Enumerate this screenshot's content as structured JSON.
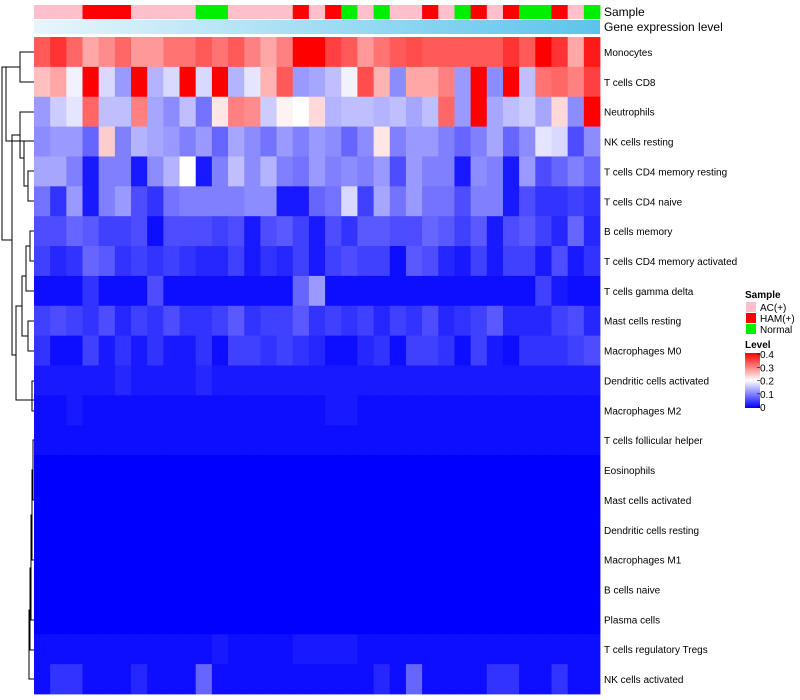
{
  "chart_data": {
    "type": "heatmap",
    "annotation_labels": [
      "Sample",
      "Gene expression level"
    ],
    "rows": [
      "Monocytes",
      "T cells CD8",
      "Neutrophils",
      "NK cells resting",
      "T cells CD4 memory resting",
      "T cells CD4 naive",
      "B cells memory",
      "T cells CD4 memory activated",
      "T cells gamma delta",
      "Mast cells resting",
      "Macrophages M0",
      "Dendritic cells activated",
      "Macrophages M2",
      "T cells follicular helper",
      "Eosinophils",
      "Mast cells activated",
      "Dendritic cells resting",
      "Macrophages M1",
      "B cells naive",
      "Plasma cells",
      "T cells regulatory  Tregs",
      "NK cells activated"
    ],
    "sample_groups": [
      "AC",
      "AC",
      "AC",
      "HAM",
      "HAM",
      "HAM",
      "AC",
      "AC",
      "AC",
      "AC",
      "Normal",
      "Normal",
      "AC",
      "AC",
      "AC",
      "AC",
      "HAM",
      "AC",
      "HAM",
      "Normal",
      "AC",
      "Normal",
      "AC",
      "AC",
      "HAM",
      "AC",
      "Normal",
      "HAM",
      "AC",
      "HAM",
      "Normal",
      "Normal",
      "HAM",
      "AC",
      "Normal"
    ],
    "expression_gradient": [
      "#e8f6fc",
      "#5bc4ec"
    ],
    "values": [
      [
        0.33,
        0.36,
        0.32,
        0.27,
        0.29,
        0.32,
        0.28,
        0.28,
        0.31,
        0.31,
        0.33,
        0.31,
        0.33,
        0.3,
        0.27,
        0.3,
        0.4,
        0.4,
        0.35,
        0.33,
        0.28,
        0.31,
        0.33,
        0.34,
        0.33,
        0.33,
        0.33,
        0.33,
        0.33,
        0.36,
        0.33,
        0.4,
        0.36,
        0.27,
        0.38
      ],
      [
        0.25,
        0.27,
        0.19,
        0.4,
        0.17,
        0.12,
        0.4,
        0.14,
        0.17,
        0.4,
        0.17,
        0.4,
        0.14,
        0.18,
        0.26,
        0.33,
        0.12,
        0.13,
        0.15,
        0.19,
        0.34,
        0.26,
        0.11,
        0.27,
        0.27,
        0.3,
        0.12,
        0.4,
        0.11,
        0.4,
        0.15,
        0.31,
        0.32,
        0.3,
        0.35
      ],
      [
        0.12,
        0.16,
        0.18,
        0.32,
        0.15,
        0.15,
        0.3,
        0.13,
        0.11,
        0.15,
        0.09,
        0.22,
        0.3,
        0.29,
        0.16,
        0.21,
        0.2,
        0.23,
        0.14,
        0.15,
        0.15,
        0.14,
        0.15,
        0.13,
        0.15,
        0.32,
        0.12,
        0.4,
        0.13,
        0.15,
        0.16,
        0.13,
        0.23,
        0.11,
        0.4
      ],
      [
        0.11,
        0.12,
        0.12,
        0.08,
        0.24,
        0.1,
        0.14,
        0.13,
        0.12,
        0.1,
        0.12,
        0.08,
        0.13,
        0.11,
        0.09,
        0.12,
        0.1,
        0.12,
        0.11,
        0.08,
        0.11,
        0.22,
        0.1,
        0.12,
        0.12,
        0.1,
        0.08,
        0.1,
        0.13,
        0.08,
        0.11,
        0.18,
        0.17,
        0.06,
        0.11
      ],
      [
        0.13,
        0.13,
        0.1,
        0.02,
        0.1,
        0.1,
        0.02,
        0.11,
        0.14,
        0.2,
        0.02,
        0.1,
        0.15,
        0.11,
        0.14,
        0.1,
        0.09,
        0.12,
        0.1,
        0.11,
        0.1,
        0.12,
        0.06,
        0.12,
        0.1,
        0.1,
        0.02,
        0.11,
        0.1,
        0.02,
        0.12,
        0.06,
        0.08,
        0.1,
        0.08
      ],
      [
        0.09,
        0.04,
        0.12,
        0.02,
        0.1,
        0.12,
        0.06,
        0.04,
        0.09,
        0.1,
        0.1,
        0.1,
        0.1,
        0.11,
        0.11,
        0.02,
        0.02,
        0.08,
        0.09,
        0.17,
        0.05,
        0.13,
        0.09,
        0.12,
        0.09,
        0.09,
        0.06,
        0.1,
        0.1,
        0.02,
        0.06,
        0.04,
        0.04,
        0.05,
        0.04
      ],
      [
        0.06,
        0.06,
        0.08,
        0.07,
        0.05,
        0.05,
        0.06,
        0.01,
        0.06,
        0.06,
        0.06,
        0.05,
        0.06,
        0.02,
        0.06,
        0.07,
        0.05,
        0.02,
        0.06,
        0.04,
        0.07,
        0.07,
        0.06,
        0.06,
        0.08,
        0.07,
        0.05,
        0.07,
        0.02,
        0.06,
        0.07,
        0.05,
        0.03,
        0.08,
        0.03
      ],
      [
        0.05,
        0.03,
        0.04,
        0.08,
        0.07,
        0.04,
        0.05,
        0.04,
        0.05,
        0.04,
        0.03,
        0.03,
        0.05,
        0.02,
        0.04,
        0.03,
        0.05,
        0.02,
        0.05,
        0.06,
        0.05,
        0.05,
        0.01,
        0.07,
        0.06,
        0.03,
        0.02,
        0.05,
        0.02,
        0.05,
        0.05,
        0.02,
        0.06,
        0.02,
        0.04
      ],
      [
        0.01,
        0.01,
        0.01,
        0.04,
        0.01,
        0.01,
        0.01,
        0.06,
        0.01,
        0.01,
        0.01,
        0.01,
        0.01,
        0.01,
        0.01,
        0.01,
        0.08,
        0.12,
        0.01,
        0.01,
        0.01,
        0.01,
        0.01,
        0.01,
        0.01,
        0.01,
        0.01,
        0.01,
        0.01,
        0.01,
        0.01,
        0.05,
        0.02,
        0.01,
        0.01
      ],
      [
        0.05,
        0.06,
        0.05,
        0.04,
        0.06,
        0.03,
        0.05,
        0.04,
        0.06,
        0.04,
        0.04,
        0.05,
        0.07,
        0.04,
        0.05,
        0.05,
        0.07,
        0.04,
        0.05,
        0.04,
        0.05,
        0.03,
        0.05,
        0.04,
        0.06,
        0.03,
        0.04,
        0.05,
        0.07,
        0.03,
        0.03,
        0.03,
        0.05,
        0.06,
        0.03
      ],
      [
        0.04,
        0.01,
        0.01,
        0.05,
        0.02,
        0.04,
        0.02,
        0.04,
        0.02,
        0.02,
        0.04,
        0.01,
        0.05,
        0.05,
        0.04,
        0.05,
        0.04,
        0.03,
        0.01,
        0.01,
        0.03,
        0.04,
        0.01,
        0.05,
        0.05,
        0.04,
        0.01,
        0.05,
        0.02,
        0.01,
        0.04,
        0.04,
        0.04,
        0.05,
        0.06
      ],
      [
        0.02,
        0.02,
        0.02,
        0.02,
        0.02,
        0.03,
        0.02,
        0.02,
        0.02,
        0.02,
        0.03,
        0.02,
        0.02,
        0.02,
        0.02,
        0.02,
        0.02,
        0.02,
        0.02,
        0.02,
        0.02,
        0.02,
        0.02,
        0.02,
        0.02,
        0.02,
        0.02,
        0.02,
        0.02,
        0.02,
        0.02,
        0.02,
        0.02,
        0.02,
        0.02
      ],
      [
        0.01,
        0.01,
        0.02,
        0.01,
        0.01,
        0.01,
        0.01,
        0.01,
        0.01,
        0.01,
        0.01,
        0.01,
        0.01,
        0.01,
        0.01,
        0.01,
        0.01,
        0.01,
        0.02,
        0.02,
        0.01,
        0.01,
        0.01,
        0.01,
        0.01,
        0.01,
        0.01,
        0.01,
        0.01,
        0.01,
        0.01,
        0.01,
        0.01,
        0.01,
        0.01
      ],
      [
        0.01,
        0.01,
        0.01,
        0.01,
        0.01,
        0.01,
        0.01,
        0.01,
        0.01,
        0.01,
        0.01,
        0.01,
        0.01,
        0.01,
        0.01,
        0.01,
        0.01,
        0.01,
        0.01,
        0.01,
        0.01,
        0.01,
        0.01,
        0.01,
        0.01,
        0.01,
        0.01,
        0.01,
        0.01,
        0.01,
        0.01,
        0.01,
        0.01,
        0.01,
        0.01
      ],
      [
        0.0,
        0.0,
        0.0,
        0.0,
        0.0,
        0.0,
        0.0,
        0.0,
        0.0,
        0.0,
        0.0,
        0.0,
        0.0,
        0.0,
        0.0,
        0.0,
        0.0,
        0.0,
        0.0,
        0.0,
        0.0,
        0.0,
        0.0,
        0.0,
        0.0,
        0.0,
        0.0,
        0.0,
        0.0,
        0.0,
        0.0,
        0.0,
        0.0,
        0.0,
        0.0
      ],
      [
        0.0,
        0.0,
        0.0,
        0.0,
        0.0,
        0.0,
        0.0,
        0.0,
        0.0,
        0.0,
        0.0,
        0.0,
        0.0,
        0.0,
        0.0,
        0.0,
        0.0,
        0.0,
        0.0,
        0.0,
        0.0,
        0.0,
        0.0,
        0.0,
        0.0,
        0.0,
        0.0,
        0.0,
        0.0,
        0.0,
        0.0,
        0.0,
        0.0,
        0.0,
        0.0
      ],
      [
        0.0,
        0.0,
        0.0,
        0.0,
        0.0,
        0.0,
        0.0,
        0.0,
        0.0,
        0.0,
        0.0,
        0.0,
        0.0,
        0.0,
        0.0,
        0.0,
        0.0,
        0.0,
        0.0,
        0.0,
        0.0,
        0.0,
        0.0,
        0.0,
        0.0,
        0.0,
        0.0,
        0.0,
        0.0,
        0.0,
        0.0,
        0.0,
        0.0,
        0.0,
        0.0
      ],
      [
        0.0,
        0.0,
        0.0,
        0.0,
        0.0,
        0.0,
        0.0,
        0.0,
        0.0,
        0.0,
        0.0,
        0.0,
        0.0,
        0.0,
        0.0,
        0.0,
        0.0,
        0.0,
        0.0,
        0.0,
        0.0,
        0.0,
        0.0,
        0.0,
        0.0,
        0.0,
        0.0,
        0.0,
        0.0,
        0.0,
        0.0,
        0.0,
        0.0,
        0.0,
        0.0
      ],
      [
        0.0,
        0.0,
        0.0,
        0.0,
        0.0,
        0.0,
        0.0,
        0.0,
        0.0,
        0.0,
        0.0,
        0.0,
        0.0,
        0.0,
        0.0,
        0.0,
        0.0,
        0.0,
        0.0,
        0.0,
        0.0,
        0.0,
        0.0,
        0.0,
        0.0,
        0.0,
        0.0,
        0.0,
        0.0,
        0.0,
        0.0,
        0.0,
        0.0,
        0.0,
        0.0
      ],
      [
        0.0,
        0.0,
        0.0,
        0.0,
        0.0,
        0.0,
        0.0,
        0.0,
        0.0,
        0.0,
        0.0,
        0.0,
        0.0,
        0.0,
        0.0,
        0.0,
        0.0,
        0.0,
        0.0,
        0.0,
        0.0,
        0.0,
        0.0,
        0.0,
        0.0,
        0.0,
        0.0,
        0.0,
        0.0,
        0.0,
        0.0,
        0.0,
        0.0,
        0.0,
        0.0
      ],
      [
        0.01,
        0.01,
        0.01,
        0.01,
        0.01,
        0.01,
        0.01,
        0.01,
        0.01,
        0.01,
        0.01,
        0.02,
        0.01,
        0.01,
        0.01,
        0.01,
        0.02,
        0.02,
        0.02,
        0.02,
        0.01,
        0.01,
        0.01,
        0.01,
        0.01,
        0.01,
        0.01,
        0.01,
        0.01,
        0.01,
        0.01,
        0.01,
        0.01,
        0.01,
        0.01
      ],
      [
        0.01,
        0.04,
        0.04,
        0.01,
        0.01,
        0.01,
        0.03,
        0.01,
        0.01,
        0.01,
        0.08,
        0.01,
        0.01,
        0.01,
        0.01,
        0.01,
        0.01,
        0.01,
        0.01,
        0.01,
        0.01,
        0.03,
        0.01,
        0.08,
        0.01,
        0.01,
        0.01,
        0.01,
        0.04,
        0.04,
        0.01,
        0.01,
        0.04,
        0.01,
        0.01
      ]
    ],
    "color_scale": {
      "min": 0,
      "mid": 0.2,
      "max": 0.4,
      "low": "#0000ff",
      "middle": "#ffffff",
      "high": "#ff0000"
    },
    "legend": {
      "sample_title": "Sample",
      "sample_entries": [
        {
          "key": "AC",
          "label": "AC(+)",
          "color": "#ffc0cb"
        },
        {
          "key": "HAM",
          "label": "HAM(+)",
          "color": "#ff0000"
        },
        {
          "key": "Normal",
          "label": "Normal",
          "color": "#00ee00"
        }
      ],
      "level_title": "Level",
      "level_ticks": [
        {
          "value": 0.4,
          "label": "0.4"
        },
        {
          "value": 0.3,
          "label": "0.3"
        },
        {
          "value": 0.2,
          "label": "0.2"
        },
        {
          "value": 0.1,
          "label": "0.1"
        },
        {
          "value": 0,
          "label": "0"
        }
      ]
    }
  }
}
